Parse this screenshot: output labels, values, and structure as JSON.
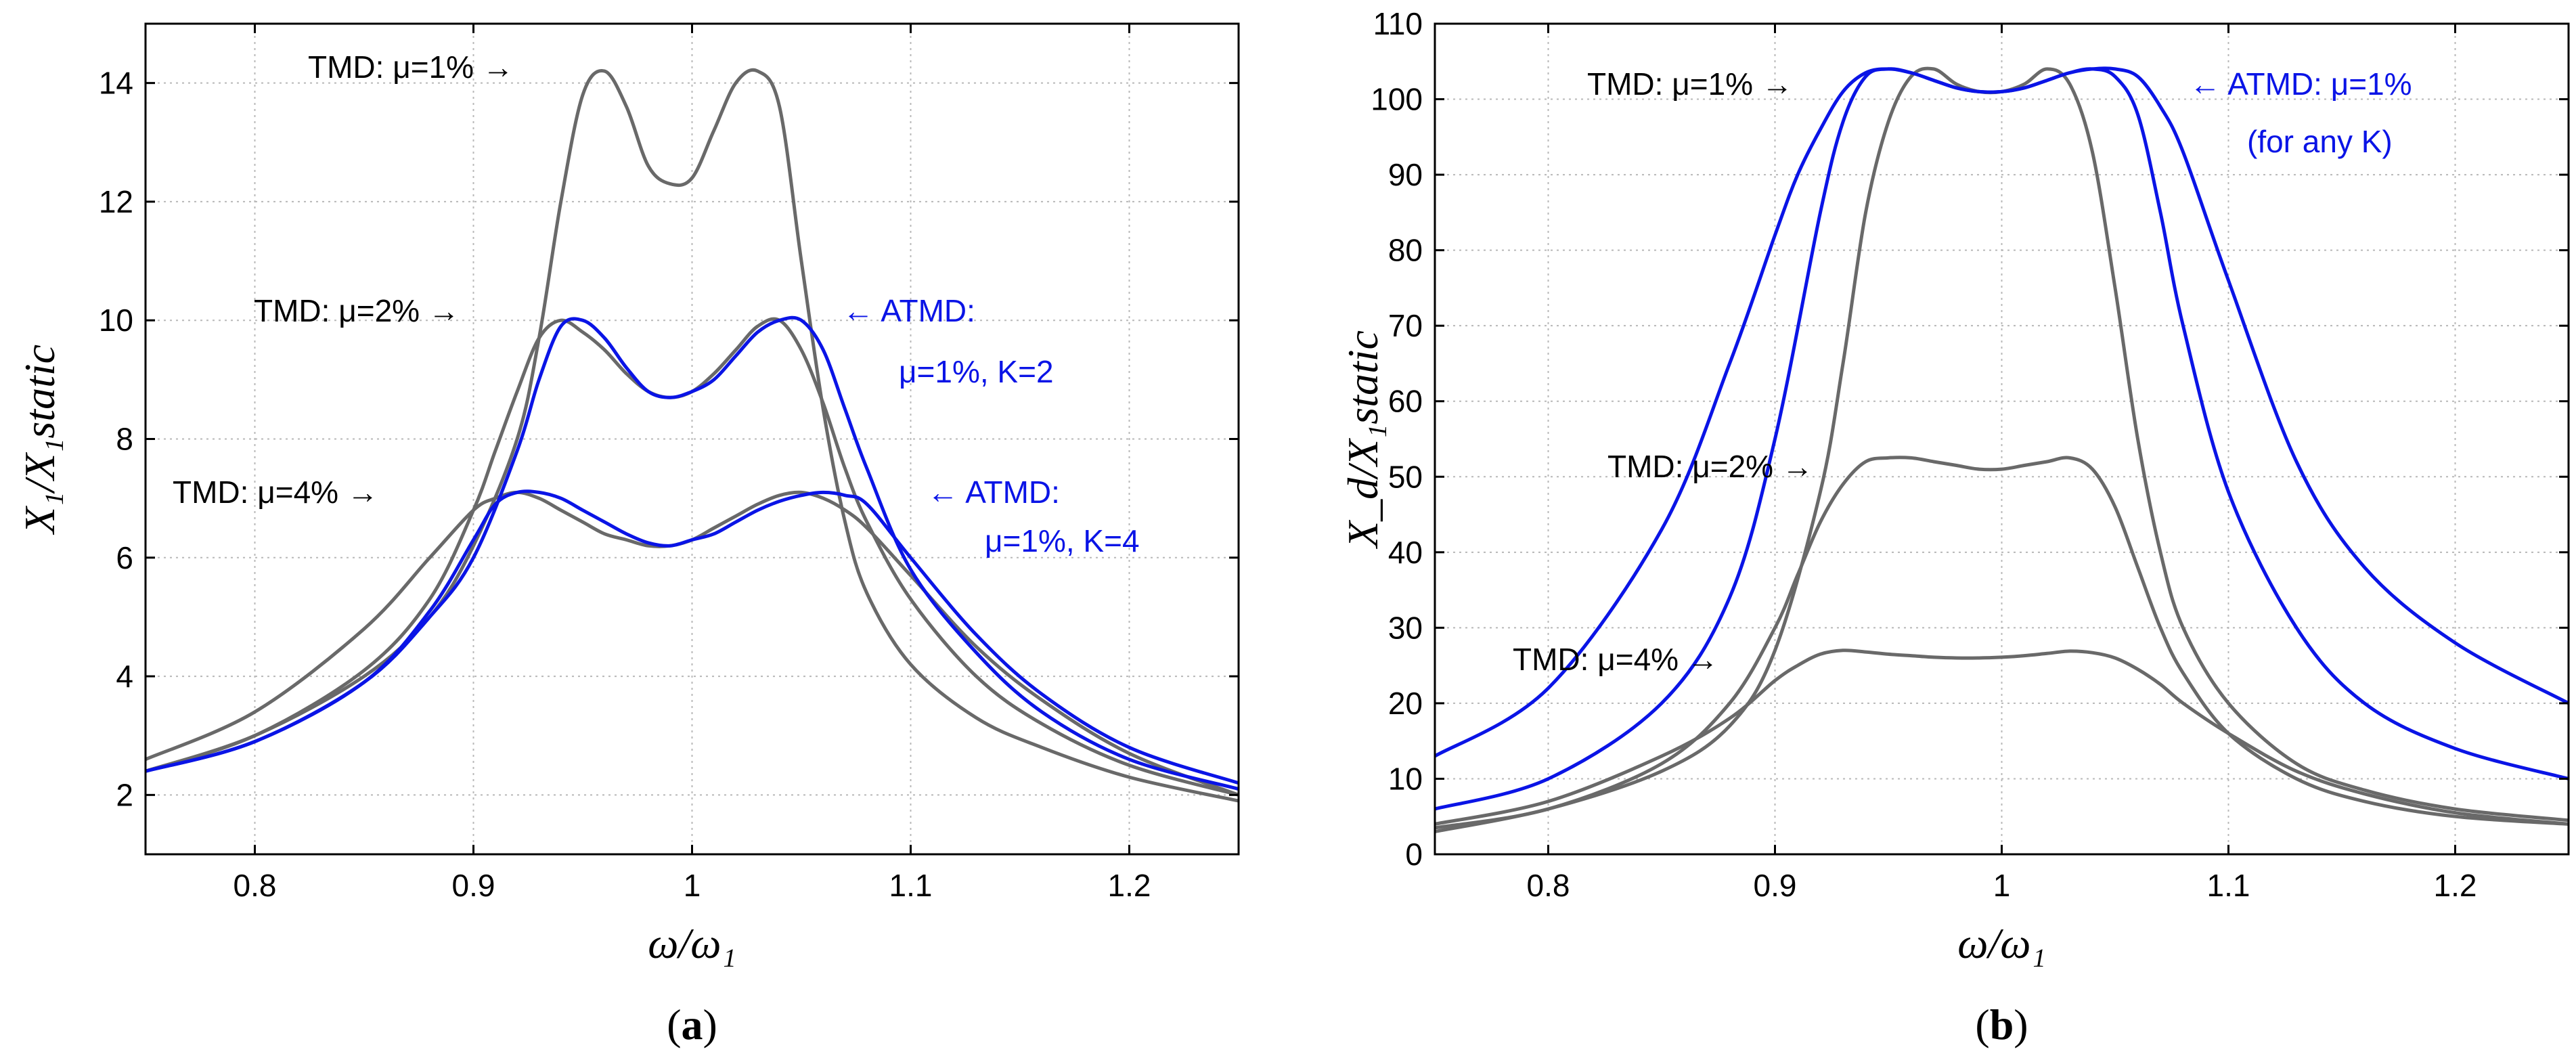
{
  "colors": {
    "tmd": "#696969",
    "atmd": "#0a14e6",
    "text": "#000000"
  },
  "chart_data": [
    {
      "type": "line",
      "panel": "(a)",
      "panel_letter": "a",
      "xlabel": "ω/ω₁",
      "ylabel": "X₁/X₁static",
      "xlim": [
        0.75,
        1.25
      ],
      "ylim": [
        1,
        15
      ],
      "grid": true,
      "xticks": [
        0.8,
        0.9,
        1,
        1.1,
        1.2
      ],
      "xtick_labels": [
        "0.8",
        "0.9",
        "1",
        "1.1",
        "1.2"
      ],
      "yticks": [
        2,
        4,
        6,
        8,
        10,
        12,
        14
      ],
      "ytick_labels": [
        "2",
        "4",
        "6",
        "8",
        "10",
        "12",
        "14"
      ],
      "series": [
        {
          "name": "TMD: μ=1%",
          "color": "tmd",
          "x": [
            0.75,
            0.8,
            0.85,
            0.88,
            0.9,
            0.92,
            0.93,
            0.94,
            0.95,
            0.96,
            0.97,
            0.98,
            0.99,
            1.0,
            1.01,
            1.02,
            1.03,
            1.04,
            1.05,
            1.06,
            1.07,
            1.08,
            1.1,
            1.13,
            1.16,
            1.2,
            1.25
          ],
          "y": [
            2.4,
            3.0,
            4.0,
            5.0,
            6.2,
            8.0,
            9.7,
            12.0,
            13.8,
            14.2,
            13.6,
            12.6,
            12.3,
            12.4,
            13.2,
            14.0,
            14.2,
            13.6,
            11.0,
            8.5,
            6.6,
            5.4,
            4.2,
            3.3,
            2.8,
            2.3,
            1.9
          ]
        },
        {
          "name": "TMD: μ=2%",
          "color": "tmd",
          "x": [
            0.75,
            0.8,
            0.85,
            0.88,
            0.9,
            0.91,
            0.92,
            0.93,
            0.94,
            0.95,
            0.96,
            0.97,
            0.98,
            0.99,
            1.0,
            1.01,
            1.02,
            1.03,
            1.04,
            1.05,
            1.06,
            1.07,
            1.08,
            1.1,
            1.13,
            1.16,
            1.2,
            1.25
          ],
          "y": [
            2.4,
            3.0,
            4.1,
            5.3,
            6.8,
            7.8,
            8.8,
            9.7,
            10.0,
            9.8,
            9.5,
            9.1,
            8.8,
            8.7,
            8.8,
            9.1,
            9.5,
            9.9,
            10.0,
            9.5,
            8.6,
            7.5,
            6.6,
            5.3,
            4.0,
            3.2,
            2.5,
            2.0
          ]
        },
        {
          "name": "TMD: μ=4%",
          "color": "tmd",
          "x": [
            0.75,
            0.8,
            0.85,
            0.88,
            0.9,
            0.91,
            0.92,
            0.93,
            0.94,
            0.95,
            0.96,
            0.97,
            0.98,
            0.99,
            1.0,
            1.01,
            1.02,
            1.03,
            1.04,
            1.05,
            1.06,
            1.07,
            1.08,
            1.1,
            1.13,
            1.16,
            1.2,
            1.25
          ],
          "y": [
            2.6,
            3.4,
            4.8,
            6.0,
            6.8,
            7.0,
            7.1,
            7.0,
            6.8,
            6.6,
            6.4,
            6.3,
            6.2,
            6.2,
            6.3,
            6.5,
            6.7,
            6.9,
            7.05,
            7.1,
            7.0,
            6.8,
            6.5,
            5.7,
            4.5,
            3.6,
            2.7,
            2.0
          ]
        },
        {
          "name": "ATMD: μ=1%, K=2",
          "color": "atmd",
          "x": [
            0.75,
            0.8,
            0.85,
            0.88,
            0.9,
            0.92,
            0.93,
            0.94,
            0.95,
            0.96,
            0.97,
            0.98,
            0.99,
            1.0,
            1.01,
            1.02,
            1.03,
            1.04,
            1.05,
            1.06,
            1.07,
            1.08,
            1.1,
            1.13,
            1.16,
            1.2,
            1.25
          ],
          "y": [
            2.4,
            2.9,
            3.9,
            5.0,
            6.0,
            7.8,
            9.0,
            9.9,
            10.0,
            9.7,
            9.2,
            8.8,
            8.7,
            8.8,
            9.0,
            9.4,
            9.8,
            10.0,
            10.0,
            9.5,
            8.5,
            7.5,
            5.8,
            4.4,
            3.4,
            2.6,
            2.1
          ]
        },
        {
          "name": "ATMD: μ=1%, K=4",
          "color": "atmd",
          "x": [
            0.75,
            0.8,
            0.85,
            0.88,
            0.9,
            0.91,
            0.92,
            0.93,
            0.94,
            0.95,
            0.96,
            0.97,
            0.98,
            0.99,
            1.0,
            1.01,
            1.02,
            1.03,
            1.04,
            1.05,
            1.06,
            1.07,
            1.08,
            1.1,
            1.13,
            1.16,
            1.2,
            1.25
          ],
          "y": [
            2.4,
            2.9,
            3.9,
            5.1,
            6.3,
            6.9,
            7.1,
            7.1,
            7.0,
            6.8,
            6.6,
            6.4,
            6.25,
            6.2,
            6.3,
            6.4,
            6.6,
            6.8,
            6.95,
            7.05,
            7.1,
            7.05,
            6.9,
            6.0,
            4.7,
            3.7,
            2.8,
            2.2
          ]
        }
      ],
      "annotations": [
        {
          "text": "TMD: μ=1% →",
          "color": "text"
        },
        {
          "text": "TMD: μ=2% →",
          "color": "text"
        },
        {
          "text": "TMD: μ=4% →",
          "color": "text"
        },
        {
          "text": "← ATMD:",
          "color": "atmd"
        },
        {
          "text": "μ=1%, K=2",
          "color": "atmd"
        },
        {
          "text": "← ATMD:",
          "color": "atmd"
        },
        {
          "text": "μ=1%, K=4",
          "color": "atmd"
        }
      ]
    },
    {
      "type": "line",
      "panel": "(b)",
      "panel_letter": "b",
      "xlabel": "ω/ω₁",
      "ylabel": "X_d/X₁static",
      "xlim": [
        0.75,
        1.25
      ],
      "ylim": [
        0,
        110
      ],
      "grid": true,
      "xticks": [
        0.8,
        0.9,
        1,
        1.1,
        1.2
      ],
      "xtick_labels": [
        "0.8",
        "0.9",
        "1",
        "1.1",
        "1.2"
      ],
      "yticks": [
        0,
        10,
        20,
        30,
        40,
        50,
        60,
        70,
        80,
        90,
        100,
        110
      ],
      "ytick_labels": [
        "0",
        "10",
        "20",
        "30",
        "40",
        "50",
        "60",
        "70",
        "80",
        "90",
        "100",
        "110"
      ],
      "series": [
        {
          "name": "TMD: μ=1%",
          "color": "tmd",
          "x": [
            0.75,
            0.8,
            0.85,
            0.88,
            0.9,
            0.92,
            0.93,
            0.94,
            0.95,
            0.96,
            0.97,
            0.98,
            0.99,
            1.0,
            1.01,
            1.02,
            1.03,
            1.04,
            1.05,
            1.06,
            1.07,
            1.08,
            1.1,
            1.13,
            1.16,
            1.2,
            1.25
          ],
          "y": [
            3,
            6,
            11,
            17,
            27,
            48,
            65,
            85,
            97,
            103,
            104,
            102,
            101,
            101,
            102,
            104,
            102,
            93,
            75,
            55,
            40,
            30,
            20,
            12,
            8.5,
            6,
            4.5
          ]
        },
        {
          "name": "TMD: μ=2%",
          "color": "tmd",
          "x": [
            0.75,
            0.8,
            0.85,
            0.88,
            0.9,
            0.91,
            0.92,
            0.93,
            0.94,
            0.95,
            0.96,
            0.97,
            0.98,
            0.99,
            1.0,
            1.01,
            1.02,
            1.03,
            1.04,
            1.05,
            1.06,
            1.07,
            1.08,
            1.1,
            1.13,
            1.16,
            1.2,
            1.25
          ],
          "y": [
            3.5,
            6,
            12,
            20,
            30,
            37,
            44,
            49,
            52,
            52.5,
            52.5,
            52,
            51.5,
            51,
            51,
            51.5,
            52,
            52.5,
            51,
            46,
            38,
            30,
            24,
            16,
            10,
            7,
            5,
            4
          ]
        },
        {
          "name": "TMD: μ=4%",
          "color": "tmd",
          "x": [
            0.75,
            0.8,
            0.85,
            0.88,
            0.9,
            0.91,
            0.92,
            0.93,
            0.94,
            0.95,
            0.96,
            0.97,
            0.98,
            0.99,
            1.0,
            1.01,
            1.02,
            1.03,
            1.04,
            1.05,
            1.06,
            1.07,
            1.08,
            1.1,
            1.13,
            1.16,
            1.2,
            1.25
          ],
          "y": [
            4,
            7,
            13,
            18,
            23,
            25,
            26.5,
            27,
            26.8,
            26.5,
            26.3,
            26.1,
            26,
            26,
            26.1,
            26.3,
            26.6,
            26.9,
            26.7,
            26,
            24.5,
            22.5,
            20,
            16,
            11,
            8,
            5.5,
            4
          ]
        },
        {
          "name": "ATMD: μ=1%, K=2",
          "color": "atmd",
          "x": [
            0.75,
            0.8,
            0.85,
            0.88,
            0.9,
            0.92,
            0.93,
            0.94,
            0.95,
            0.96,
            0.97,
            0.98,
            0.99,
            1.0,
            1.01,
            1.02,
            1.03,
            1.04,
            1.05,
            1.06,
            1.07,
            1.08,
            1.1,
            1.13,
            1.16,
            1.2,
            1.25
          ],
          "y": [
            6,
            10,
            20,
            34,
            55,
            85,
            97,
            103,
            104,
            103.5,
            102.5,
            101.5,
            101,
            101,
            101.5,
            102.5,
            103.5,
            104,
            103,
            98,
            85,
            70,
            48,
            30,
            20,
            14,
            10
          ]
        },
        {
          "name": "ATMD: μ=1%, K=4",
          "color": "atmd",
          "x": [
            0.75,
            0.8,
            0.85,
            0.88,
            0.9,
            0.91,
            0.92,
            0.93,
            0.94,
            0.95,
            0.96,
            0.97,
            0.98,
            0.99,
            1.0,
            1.01,
            1.02,
            1.03,
            1.04,
            1.05,
            1.06,
            1.07,
            1.08,
            1.1,
            1.13,
            1.16,
            1.2,
            1.25
          ],
          "y": [
            13,
            22,
            43,
            65,
            82,
            90,
            96,
            101,
            103.5,
            104,
            103.5,
            102.5,
            101.5,
            101,
            101,
            101.5,
            102.5,
            103.5,
            104,
            104,
            103,
            99,
            93,
            76,
            52,
            38,
            28,
            20
          ]
        }
      ],
      "annotations": [
        {
          "text": "TMD: μ=1% →",
          "color": "text"
        },
        {
          "text": "TMD: μ=2% →",
          "color": "text"
        },
        {
          "text": "TMD: μ=4% →",
          "color": "text"
        },
        {
          "text": "← ATMD: μ=1%",
          "color": "atmd"
        },
        {
          "text": "(for any K)",
          "color": "atmd"
        }
      ]
    }
  ]
}
